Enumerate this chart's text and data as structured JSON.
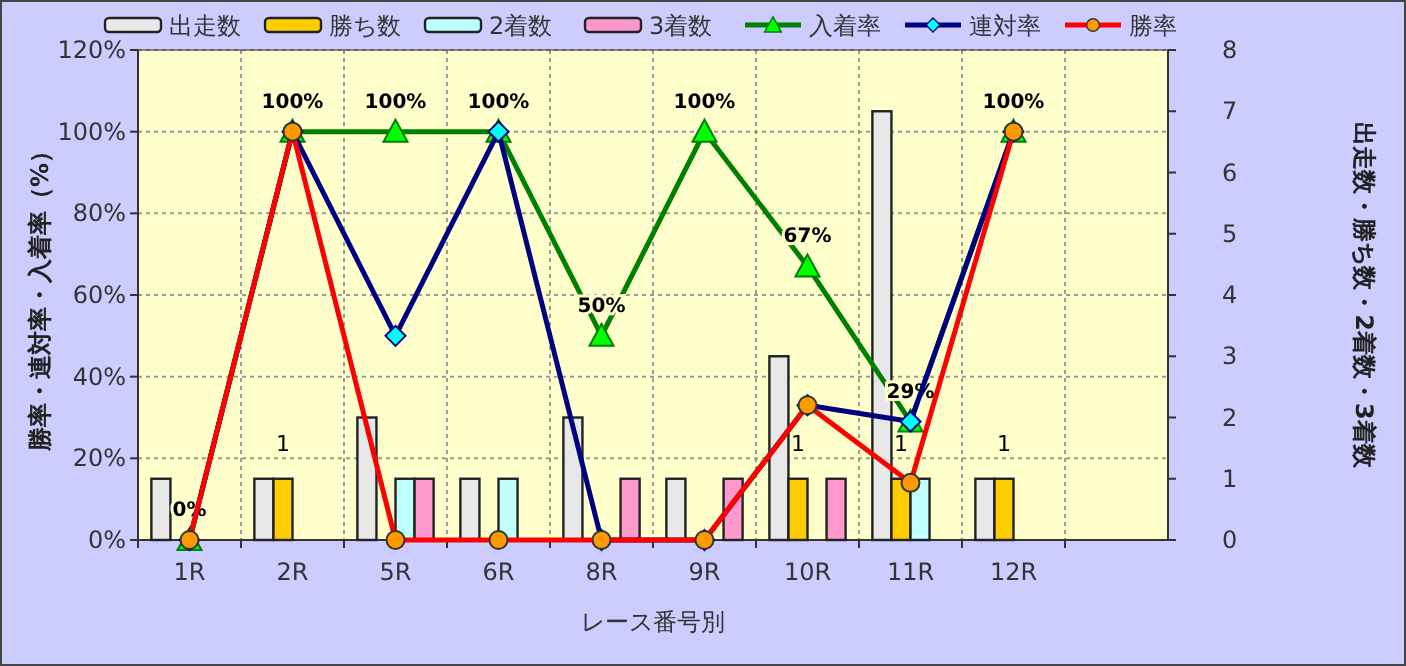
{
  "chart_data": {
    "type": "bar",
    "xlabel": "レース番号別",
    "ylabel": "勝率・連対率・入着率（%）",
    "y2label": "出走数・勝ち数・2着数・3着数",
    "categories": [
      "1R",
      "2R",
      "5R",
      "6R",
      "8R",
      "9R",
      "10R",
      "11R",
      "12R",
      null
    ],
    "series": [
      {
        "name": "出走数",
        "axis": "y2",
        "color": "#e8e8e8",
        "values": [
          1,
          1,
          2,
          1,
          2,
          1,
          3,
          7,
          1,
          null
        ]
      },
      {
        "name": "勝ち数",
        "axis": "y2",
        "color": "#ffcc00",
        "values": [
          0,
          1,
          0,
          0,
          0,
          0,
          1,
          1,
          1,
          null
        ],
        "value_labels": [
          null,
          "1",
          null,
          null,
          null,
          null,
          "1",
          "1",
          "1",
          null
        ]
      },
      {
        "name": "2着数",
        "axis": "y2",
        "color": "#c0ffff",
        "values": [
          0,
          0,
          1,
          1,
          0,
          0,
          0,
          1,
          0,
          null
        ]
      },
      {
        "name": "3着数",
        "axis": "y2",
        "color": "#ff99cc",
        "values": [
          0,
          0,
          1,
          0,
          1,
          1,
          1,
          0,
          0,
          null
        ]
      },
      {
        "name": "入着率",
        "type": "line",
        "color": "#008000",
        "marker": "triangle",
        "values": [
          0,
          100,
          100,
          100,
          50,
          100,
          67,
          29,
          100,
          null
        ],
        "value_labels": [
          "0%",
          "100%",
          "100%",
          "100%",
          "50%",
          "100%",
          "67%",
          "29%",
          "100%",
          null
        ]
      },
      {
        "name": "連対率",
        "type": "line",
        "color": "#000080",
        "marker": "diamond",
        "values": [
          0,
          100,
          50,
          100,
          0,
          0,
          33,
          29,
          100,
          null
        ]
      },
      {
        "name": "勝率",
        "type": "line",
        "color": "#ff0000",
        "marker": "circle",
        "values": [
          0,
          100,
          0,
          0,
          0,
          0,
          33,
          14,
          100,
          null
        ]
      }
    ],
    "ylim": [
      0,
      120
    ],
    "yticks": [
      {
        "value": 0,
        "label": "0%"
      },
      {
        "value": 20,
        "label": "20%"
      },
      {
        "value": 40,
        "label": "40%"
      },
      {
        "value": 60,
        "label": "60%"
      },
      {
        "value": 80,
        "label": "80%"
      },
      {
        "value": 100,
        "label": "100%"
      },
      {
        "value": 120,
        "label": "120%"
      }
    ],
    "y2lim": [
      0,
      8
    ],
    "y2ticks": [
      0,
      1,
      2,
      3,
      4,
      5,
      6,
      7,
      8
    ],
    "grid": true,
    "legend": "top",
    "line_style": "solid"
  }
}
